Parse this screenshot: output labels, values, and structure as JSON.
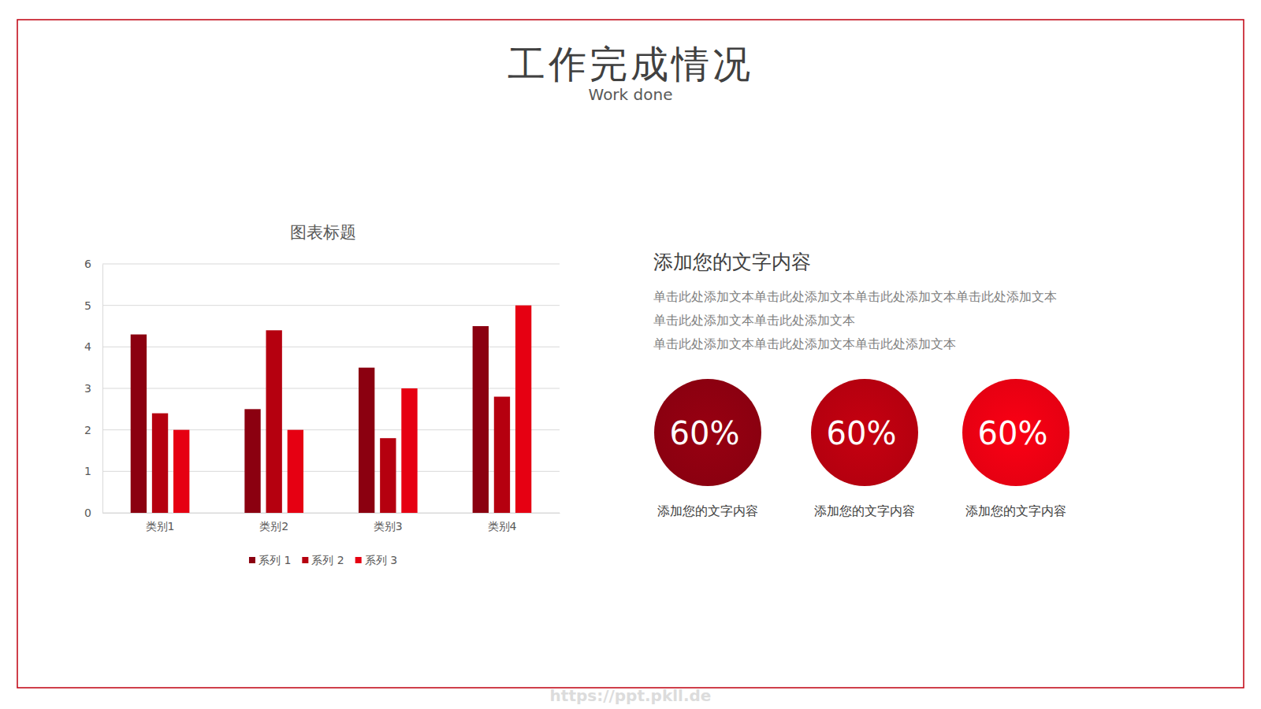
{
  "title": "工作完成情况",
  "subtitle": "Work done",
  "chart_data": {
    "type": "bar",
    "title": "图表标题",
    "categories": [
      "类别1",
      "类别2",
      "类别3",
      "类别4"
    ],
    "series": [
      {
        "name": "系列 1",
        "color": "#8b0010",
        "values": [
          4.3,
          2.5,
          3.5,
          4.5
        ]
      },
      {
        "name": "系列 2",
        "color": "#b5000f",
        "values": [
          2.4,
          4.4,
          1.8,
          2.8
        ]
      },
      {
        "name": "系列 3",
        "color": "#e60012",
        "values": [
          2,
          2,
          3,
          5
        ]
      }
    ],
    "ylim": [
      0,
      6
    ],
    "yticks": [
      0,
      1,
      2,
      3,
      4,
      5,
      6
    ],
    "grid": true,
    "legend": "bottom"
  },
  "text_panel": {
    "heading": "添加您的文字内容",
    "lines": [
      "单击此处添加文本单击此处添加文本单击此处添加文本单击此处添加文本",
      "单击此处添加文本单击此处添加文本",
      "单击此处添加文本单击此处添加文本单击此处添加文本"
    ],
    "circles": [
      {
        "label": "60%",
        "caption": "添加您的文字内容",
        "color": "#8b0010"
      },
      {
        "label": "60%",
        "caption": "添加您的文字内容",
        "color": "#b5000f"
      },
      {
        "label": "60%",
        "caption": "添加您的文字内容",
        "color": "#e60012"
      }
    ]
  },
  "watermark": "https://ppt.pkll.de"
}
